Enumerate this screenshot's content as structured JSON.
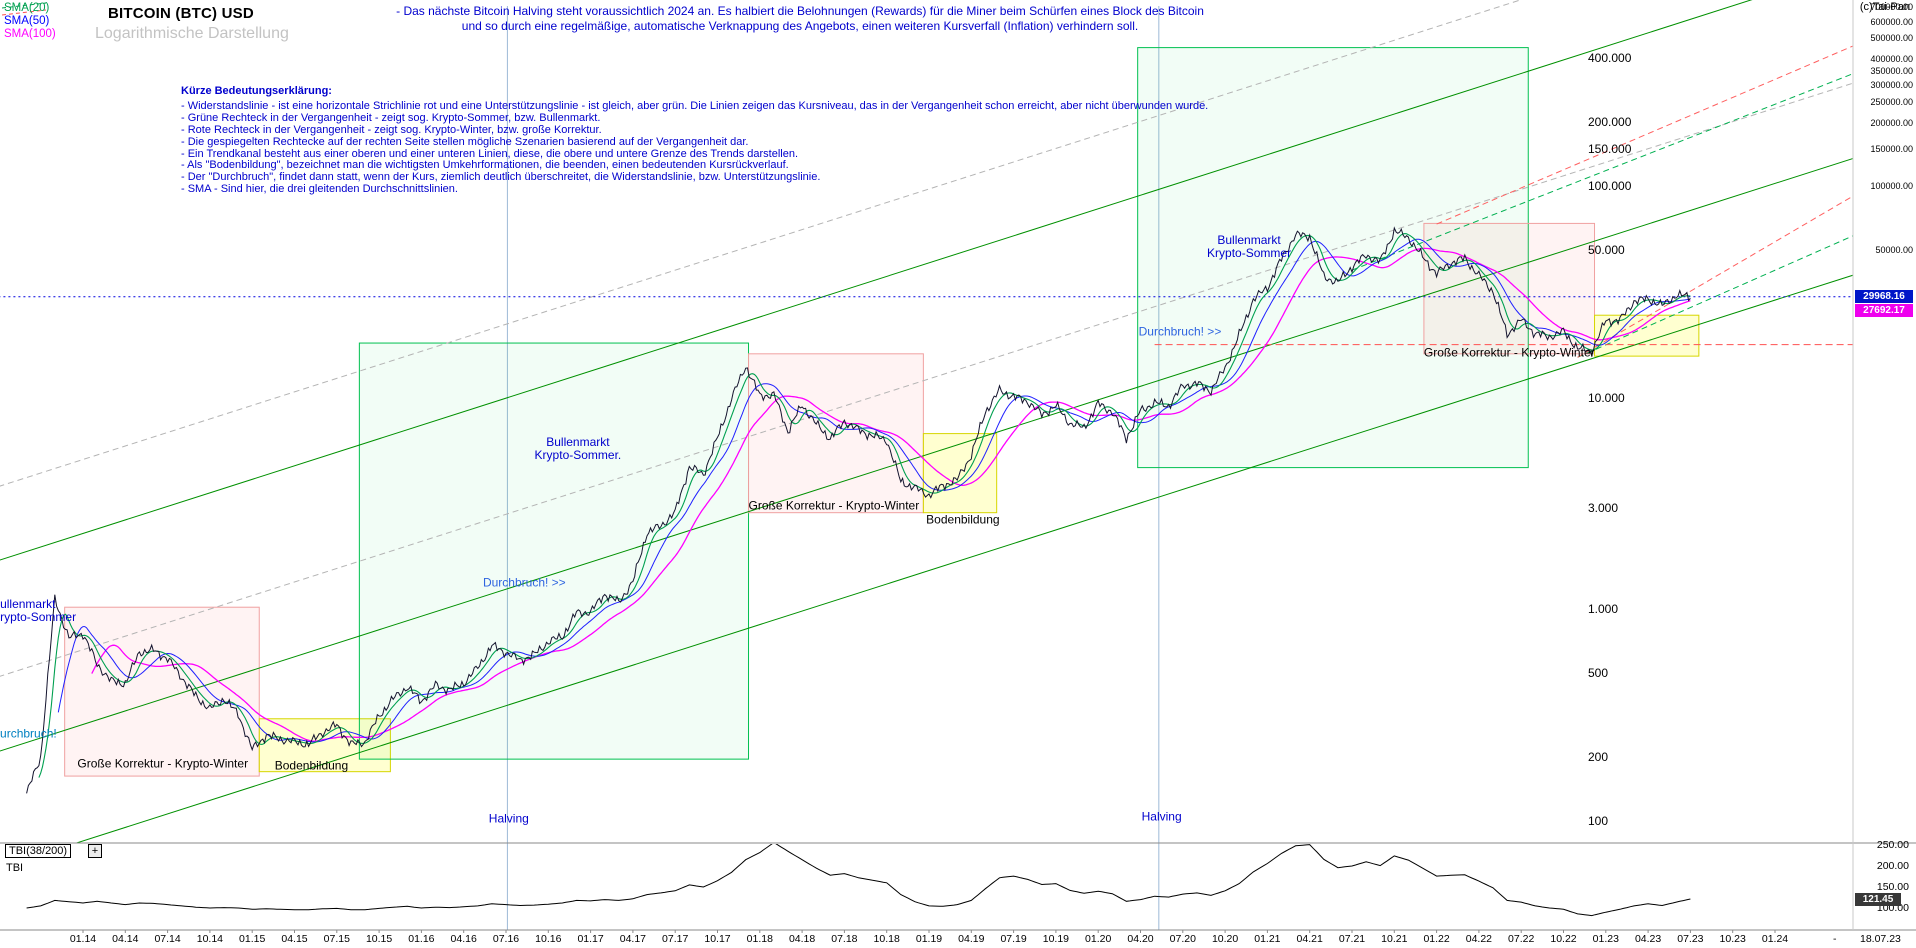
{
  "header": {
    "sma_legend": [
      {
        "label": "SMA(20)",
        "color": "#00a050"
      },
      {
        "label": "SMA(50)",
        "color": "#0000ff"
      },
      {
        "label": "SMA(100)",
        "color": "#ff00ff"
      }
    ],
    "title": "BITCOIN (BTC) USD",
    "subtitle": "Logarithmische Darstellung",
    "note_line1": "- Das nächste Bitcoin Halving steht voraussichtlich 2024 an. Es halbiert die Belohnungen (Rewards) für die Miner beim Schürfen eines Block des Bitcoin",
    "note_line2": "und so durch eine regelmäßige, automatische Verknappung des Angebots, einen weiteren Kursverfall (Inflation) verhindern soll.",
    "copyright": "(c)Tai-Pan"
  },
  "explanation": {
    "title": "Kürze Bedeutungserklärung:",
    "lines": [
      "- Widerstandslinie - ist eine horizontale Strichlinie rot und eine Unterstützungslinie - ist gleich, aber grün. Die Linien zeigen das Kursniveau, das in der Vergangenheit schon erreicht, aber nicht überwunden wurde.",
      "- Grüne Rechteck in der Vergangenheit - zeigt sog. Krypto-Sommer, bzw. Bullenmarkt.",
      "- Rote Rechteck in der Vergangenheit - zeigt sog. Krypto-Winter, bzw. große Korrektur.",
      "- Die gespiegelten Rechtecke auf der rechten Seite stellen mögliche Szenarien basierend auf der Vergangenheit dar.",
      "- Ein Trendkanal besteht aus einer oberen und einer unteren Linien, diese, die obere und untere Grenze des Trends darstellen.",
      "- Als \"Bodenbildung\", bezeichnet man die wichtigsten Umkehrformationen, die beenden, einen bedeutenden Kursrückverlauf.",
      "- Der \"Durchbruch\", findet dann statt, wenn der Kurs, ziemlich deutlich überschreitet, die Widerstandslinie, bzw. Unterstützungslinie.",
      "- SMA - Sind hier, die drei gleitenden Durchschnittslinien."
    ]
  },
  "tbi": {
    "box_label": "TBI(38/200)",
    "plus_label": "+",
    "label": "TBI",
    "axis_labels": [
      {
        "label": "250.00",
        "value": 250
      },
      {
        "label": "200.00",
        "value": 200
      },
      {
        "label": "150.00",
        "value": 150
      },
      {
        "label": "100.00",
        "value": 100
      }
    ],
    "last_value": 121.45,
    "last_value_label": "121.45"
  },
  "chart_data": {
    "type": "line",
    "scale": "log",
    "title": "BITCOIN (BTC) USD",
    "ylim": [
      100,
      800000
    ],
    "t_unit": "months since 2014-01",
    "t_start": -4,
    "x_start_month": "2013-09",
    "x_axis_quarter_labels": [
      "01.14",
      "04.14",
      "07.14",
      "10.14",
      "01.15",
      "04.15",
      "07.15",
      "10.15",
      "01.16",
      "04.16",
      "07.16",
      "10.16",
      "01.17",
      "04.17",
      "07.17",
      "10.17",
      "01.18",
      "04.18",
      "07.18",
      "10.18",
      "01.19",
      "04.19",
      "07.19",
      "10.19",
      "01.20",
      "04.20",
      "07.20",
      "10.20",
      "01.21",
      "04.21",
      "07.21",
      "10.21",
      "01.22",
      "04.22",
      "07.22",
      "10.22",
      "01.23",
      "04.23",
      "07.23",
      "10.23",
      "01.24"
    ],
    "x_dash_label": "-",
    "x_last_label": "18.07.23",
    "price_monthly_close": [
      135,
      200,
      1120,
      732,
      770,
      550,
      458,
      446,
      628,
      640,
      585,
      478,
      388,
      338,
      378,
      320,
      218,
      254,
      244,
      236,
      230,
      263,
      284,
      230,
      236,
      314,
      378,
      430,
      368,
      437,
      416,
      448,
      531,
      673,
      625,
      575,
      610,
      701,
      745,
      963,
      970,
      1180,
      1080,
      1350,
      2300,
      2480,
      2875,
      4700,
      4340,
      6450,
      9900,
      14100,
      10200,
      10300,
      6930,
      9240,
      7500,
      6400,
      7730,
      7030,
      6600,
      6300,
      4020,
      3740,
      3460,
      3850,
      4100,
      5350,
      8570,
      10800,
      10100,
      9600,
      8300,
      9150,
      7550,
      7200,
      9350,
      8550,
      6440,
      8650,
      9450,
      9140,
      11350,
      11650,
      10780,
      13800,
      19700,
      29000,
      33100,
      45200,
      58800,
      57750,
      37300,
      35000,
      41500,
      47100,
      43800,
      61300,
      57000,
      46200,
      38500,
      43200,
      45500,
      37700,
      31800,
      19900,
      23300,
      20050,
      19400,
      20500,
      17100,
      16550,
      23100,
      23150,
      28500,
      29250,
      27200,
      30480,
      29968
    ],
    "tbi_monthly": [
      100,
      105,
      118,
      115,
      112,
      116,
      112,
      108,
      112,
      111,
      108,
      105,
      102,
      100,
      101,
      100,
      97,
      98,
      97,
      96,
      96,
      98,
      99,
      96,
      96,
      99,
      102,
      104,
      100,
      102,
      101,
      103,
      105,
      110,
      108,
      106,
      107,
      109,
      112,
      118,
      117,
      120,
      118,
      122,
      132,
      136,
      141,
      155,
      150,
      165,
      185,
      215,
      232,
      256,
      235,
      215,
      195,
      178,
      182,
      172,
      166,
      160,
      132,
      115,
      105,
      104,
      108,
      118,
      146,
      172,
      176,
      168,
      156,
      158,
      142,
      135,
      140,
      134,
      116,
      120,
      128,
      126,
      133,
      136,
      130,
      141,
      158,
      186,
      206,
      230,
      248,
      251,
      216,
      196,
      200,
      210,
      201,
      224,
      214,
      195,
      176,
      178,
      179,
      164,
      148,
      118,
      114,
      105,
      100,
      97,
      86,
      82,
      90,
      97,
      105,
      110,
      106,
      114,
      121.45
    ],
    "sma_series": [
      {
        "name": "SMA(20)",
        "color": "#00a050"
      },
      {
        "name": "SMA(50)",
        "color": "#2020ff"
      },
      {
        "name": "SMA(100)",
        "color": "#ff00ff"
      }
    ],
    "last_price": 29968.16,
    "last_price_label": "29968.16",
    "sma100_last": 27692.17,
    "sma100_last_label": "27692.17",
    "price_axis_labels": [
      {
        "label": "400.000",
        "value": 400000
      },
      {
        "label": "200.000",
        "value": 200000
      },
      {
        "label": "150.000",
        "value": 150000
      },
      {
        "label": "100.000",
        "value": 100000
      },
      {
        "label": "50.000",
        "value": 50000
      },
      {
        "label": "10.000",
        "value": 10000
      },
      {
        "label": "3.000",
        "value": 3000
      },
      {
        "label": "1.000",
        "value": 1000
      },
      {
        "label": "500",
        "value": 500
      },
      {
        "label": "200",
        "value": 200
      },
      {
        "label": "100",
        "value": 100
      }
    ],
    "right_scale_labels": [
      {
        "label": "800000.00",
        "value": 800000
      },
      {
        "label": "700000.00",
        "value": 700000
      },
      {
        "label": "600000.00",
        "value": 600000
      },
      {
        "label": "500000.00",
        "value": 500000
      },
      {
        "label": "400000.00",
        "value": 400000
      },
      {
        "label": "350000.00",
        "value": 350000
      },
      {
        "label": "300000.00",
        "value": 300000
      },
      {
        "label": "250000.00",
        "value": 250000
      },
      {
        "label": "200000.00",
        "value": 200000
      },
      {
        "label": "150000.00",
        "value": 150000
      },
      {
        "label": "100000.00",
        "value": 100000
      },
      {
        "label": "50000.00",
        "value": 50000
      }
    ],
    "halving_lines_t": [
      30.1,
      76.3
    ],
    "rectangles": [
      {
        "name": "krypto-winter-2014",
        "kind": "correction",
        "t1": -1.3,
        "t2": 12.5,
        "p1": 163,
        "p2": 1023
      },
      {
        "name": "bodenbildung-2015",
        "kind": "bottom",
        "t1": 12.5,
        "t2": 21.8,
        "p1": 171,
        "p2": 304
      },
      {
        "name": "krypto-sommer-2016-2017",
        "kind": "bull",
        "t1": 19.6,
        "t2": 47.2,
        "p1": 196,
        "p2": 18100
      },
      {
        "name": "krypto-winter-2018",
        "kind": "correction",
        "t1": 47.2,
        "t2": 59.6,
        "p1": 2860,
        "p2": 16100
      },
      {
        "name": "bodenbildung-2019",
        "kind": "bottom",
        "t1": 59.6,
        "t2": 64.8,
        "p1": 2860,
        "p2": 6760
      },
      {
        "name": "krypto-sommer-2020-2021",
        "kind": "bull",
        "t1": 74.8,
        "t2": 102.5,
        "p1": 4670,
        "p2": 450000
      },
      {
        "name": "krypto-winter-2022",
        "kind": "correction",
        "t1": 95.1,
        "t2": 107.2,
        "p1": 16100,
        "p2": 66500
      },
      {
        "name": "bodenbildung-2023",
        "kind": "bottom",
        "t1": 107.2,
        "t2": 114.6,
        "p1": 15700,
        "p2": 24500
      }
    ],
    "trend_lines": [
      {
        "name": "trend-channel-lower",
        "style": "solid",
        "color": "#009000",
        "t1": -6,
        "p1": 60,
        "t2": 132,
        "p2": 52000
      },
      {
        "name": "trend-channel-mid",
        "style": "solid",
        "color": "#009000",
        "t1": -6,
        "p1": 213,
        "t2": 132,
        "p2": 185000
      },
      {
        "name": "trend-channel-upper",
        "style": "solid",
        "color": "#009000",
        "t1": -6,
        "p1": 1700,
        "t2": 132,
        "p2": 1480000
      },
      {
        "name": "parallel-gray-lower",
        "style": "dashed",
        "color": "#b4b4b4",
        "t1": -6,
        "p1": 480,
        "t2": 132,
        "p2": 420000
      },
      {
        "name": "parallel-gray-upper",
        "style": "dashed",
        "color": "#b4b4b4",
        "t1": -6,
        "p1": 3800,
        "t2": 132,
        "p2": 3300000
      },
      {
        "name": "scenario-green-upper",
        "style": "dashed",
        "color": "#00b050",
        "t1": 90,
        "p1": 40000,
        "t2": 132,
        "p2": 500000
      },
      {
        "name": "scenario-green-lower",
        "style": "dashed",
        "color": "#00b050",
        "t1": 106,
        "p1": 15500,
        "t2": 132,
        "p2": 90000
      },
      {
        "name": "scenario-red-upper",
        "style": "dashed",
        "color": "#ff6060",
        "t1": 96,
        "p1": 66000,
        "t2": 132,
        "p2": 700000
      },
      {
        "name": "scenario-red-lower",
        "style": "dashed",
        "color": "#ff6060",
        "t1": 106,
        "p1": 15500,
        "t2": 132,
        "p2": 160000
      }
    ],
    "horizontal_lines": [
      {
        "name": "current-price-line",
        "price": 29968.16,
        "color": "#0000e0",
        "style": "dotted",
        "t1": -6,
        "t2": 125.5
      },
      {
        "name": "resistance-line",
        "price": 17800,
        "color": "#ff5050",
        "style": "dashed",
        "t1": 76,
        "t2": 125.5
      }
    ],
    "annotations": [
      {
        "name": "bullmarket-label-1",
        "lines": [
          "Bullenmarkt",
          "Krypto-Sommer."
        ],
        "t": 35.1,
        "p": 5710,
        "color": "#0000cd",
        "align": "center"
      },
      {
        "name": "durchbruch-label-1",
        "lines": [
          "Durchbruch! >>"
        ],
        "t": 31.3,
        "p": 1330,
        "color": "#2e64e0",
        "align": "center"
      },
      {
        "name": "bullmarket-label-2",
        "lines": [
          "Bullenmarkt",
          "Krypto-Sommer"
        ],
        "t": 82.7,
        "p": 51500,
        "color": "#0000cd",
        "align": "center"
      },
      {
        "name": "durchbruch-label-2",
        "lines": [
          "Durchbruch! >>"
        ],
        "t": 77.8,
        "p": 20400,
        "color": "#2e64e0",
        "align": "center"
      },
      {
        "name": "korrektur-label-1",
        "lines": [
          "Große Korrektur - Krypto-Winter"
        ],
        "t": -0.4,
        "p": 186,
        "color": "#000000",
        "align": "left"
      },
      {
        "name": "bodenbildung-label-1",
        "lines": [
          "Bodenbildung"
        ],
        "t": 13.6,
        "p": 182,
        "color": "#000000",
        "align": "left"
      },
      {
        "name": "korrektur-label-2",
        "lines": [
          "Große Korrektur - Krypto-Winter"
        ],
        "t": 47.2,
        "p": 3080,
        "color": "#000000",
        "align": "left"
      },
      {
        "name": "bodenbildung-label-2",
        "lines": [
          "Bodenbildung"
        ],
        "t": 59.8,
        "p": 2640,
        "color": "#000000",
        "align": "left"
      },
      {
        "name": "korrektur-label-3",
        "lines": [
          "Große Korrektur - Krypto-Winter"
        ],
        "t": 95.1,
        "p": 16300,
        "color": "#000000",
        "align": "left"
      },
      {
        "name": "bullmarket-label-left",
        "lines": [
          "Bullenmarkt",
          "Krypto-Sommer"
        ],
        "t": -6.45,
        "p": 985,
        "color": "#0000cd",
        "align": "left"
      },
      {
        "name": "durchbruch-label-left",
        "lines": [
          "Durchbruch!"
        ],
        "t": -6.5,
        "p": 258,
        "color": "#0080c0",
        "align": "left"
      },
      {
        "name": "halving-label-1",
        "lines": [
          "Halving"
        ],
        "t": 30.2,
        "p": 102.5,
        "color": "#0000cd",
        "align": "center"
      },
      {
        "name": "halving-label-2",
        "lines": [
          "Halving"
        ],
        "t": 76.5,
        "p": 104,
        "color": "#0000cd",
        "align": "center"
      }
    ]
  }
}
